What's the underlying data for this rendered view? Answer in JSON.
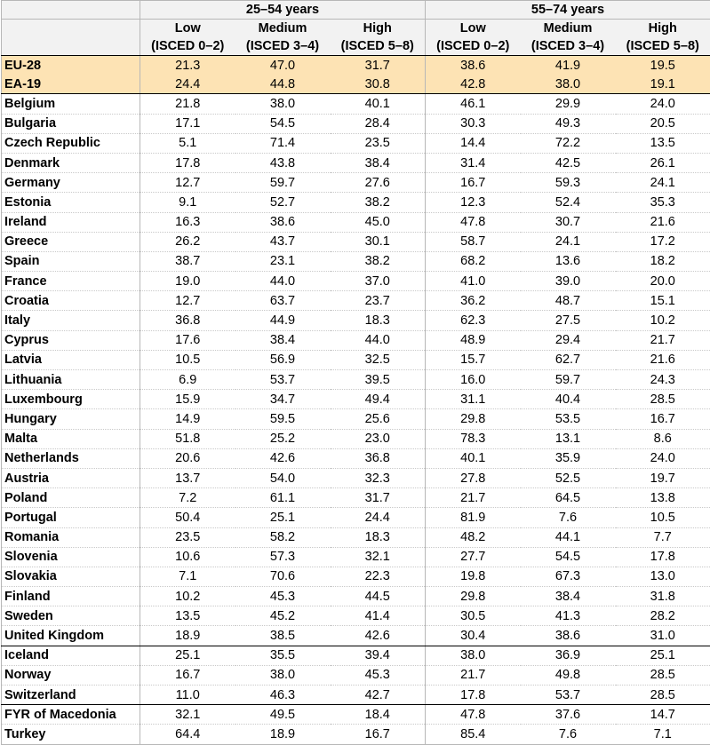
{
  "header": {
    "group_25_54": "25–54 years",
    "group_55_74": "55–74 years",
    "levels": [
      {
        "name": "Low",
        "isced": "(ISCED 0–2)"
      },
      {
        "name": "Medium",
        "isced": "(ISCED 3–4)"
      },
      {
        "name": "High",
        "isced": "(ISCED 5–8)"
      },
      {
        "name": "Low",
        "isced": "(ISCED 0–2)"
      },
      {
        "name": "Medium",
        "isced": "(ISCED 3–4)"
      },
      {
        "name": "High",
        "isced": "(ISCED 5–8)"
      }
    ]
  },
  "colors": {
    "aggregate_highlight": "#fde3b4",
    "header_bg": "#f2f2f2"
  },
  "rows": [
    {
      "country": "EU-28",
      "values": [
        "21.3",
        "47.0",
        "31.7",
        "38.6",
        "41.9",
        "19.5"
      ],
      "kind": "agg"
    },
    {
      "country": "EA-19",
      "values": [
        "24.4",
        "44.8",
        "30.8",
        "42.8",
        "38.0",
        "19.1"
      ],
      "kind": "agg-last"
    },
    {
      "country": "Belgium",
      "values": [
        "21.8",
        "38.0",
        "40.1",
        "46.1",
        "29.9",
        "24.0"
      ]
    },
    {
      "country": "Bulgaria",
      "values": [
        "17.1",
        "54.5",
        "28.4",
        "30.3",
        "49.3",
        "20.5"
      ]
    },
    {
      "country": "Czech Republic",
      "values": [
        "5.1",
        "71.4",
        "23.5",
        "14.4",
        "72.2",
        "13.5"
      ]
    },
    {
      "country": "Denmark",
      "values": [
        "17.8",
        "43.8",
        "38.4",
        "31.4",
        "42.5",
        "26.1"
      ]
    },
    {
      "country": "Germany",
      "values": [
        "12.7",
        "59.7",
        "27.6",
        "16.7",
        "59.3",
        "24.1"
      ]
    },
    {
      "country": "Estonia",
      "values": [
        "9.1",
        "52.7",
        "38.2",
        "12.3",
        "52.4",
        "35.3"
      ]
    },
    {
      "country": "Ireland",
      "values": [
        "16.3",
        "38.6",
        "45.0",
        "47.8",
        "30.7",
        "21.6"
      ]
    },
    {
      "country": "Greece",
      "values": [
        "26.2",
        "43.7",
        "30.1",
        "58.7",
        "24.1",
        "17.2"
      ]
    },
    {
      "country": "Spain",
      "values": [
        "38.7",
        "23.1",
        "38.2",
        "68.2",
        "13.6",
        "18.2"
      ]
    },
    {
      "country": "France",
      "values": [
        "19.0",
        "44.0",
        "37.0",
        "41.0",
        "39.0",
        "20.0"
      ]
    },
    {
      "country": "Croatia",
      "values": [
        "12.7",
        "63.7",
        "23.7",
        "36.2",
        "48.7",
        "15.1"
      ]
    },
    {
      "country": "Italy",
      "values": [
        "36.8",
        "44.9",
        "18.3",
        "62.3",
        "27.5",
        "10.2"
      ]
    },
    {
      "country": "Cyprus",
      "values": [
        "17.6",
        "38.4",
        "44.0",
        "48.9",
        "29.4",
        "21.7"
      ]
    },
    {
      "country": "Latvia",
      "values": [
        "10.5",
        "56.9",
        "32.5",
        "15.7",
        "62.7",
        "21.6"
      ]
    },
    {
      "country": "Lithuania",
      "values": [
        "6.9",
        "53.7",
        "39.5",
        "16.0",
        "59.7",
        "24.3"
      ]
    },
    {
      "country": "Luxembourg",
      "values": [
        "15.9",
        "34.7",
        "49.4",
        "31.1",
        "40.4",
        "28.5"
      ]
    },
    {
      "country": "Hungary",
      "values": [
        "14.9",
        "59.5",
        "25.6",
        "29.8",
        "53.5",
        "16.7"
      ]
    },
    {
      "country": "Malta",
      "values": [
        "51.8",
        "25.2",
        "23.0",
        "78.3",
        "13.1",
        "8.6"
      ]
    },
    {
      "country": "Netherlands",
      "values": [
        "20.6",
        "42.6",
        "36.8",
        "40.1",
        "35.9",
        "24.0"
      ]
    },
    {
      "country": "Austria",
      "values": [
        "13.7",
        "54.0",
        "32.3",
        "27.8",
        "52.5",
        "19.7"
      ]
    },
    {
      "country": "Poland",
      "values": [
        "7.2",
        "61.1",
        "31.7",
        "21.7",
        "64.5",
        "13.8"
      ]
    },
    {
      "country": "Portugal",
      "values": [
        "50.4",
        "25.1",
        "24.4",
        "81.9",
        "7.6",
        "10.5"
      ]
    },
    {
      "country": "Romania",
      "values": [
        "23.5",
        "58.2",
        "18.3",
        "48.2",
        "44.1",
        "7.7"
      ]
    },
    {
      "country": "Slovenia",
      "values": [
        "10.6",
        "57.3",
        "32.1",
        "27.7",
        "54.5",
        "17.8"
      ]
    },
    {
      "country": "Slovakia",
      "values": [
        "7.1",
        "70.6",
        "22.3",
        "19.8",
        "67.3",
        "13.0"
      ]
    },
    {
      "country": "Finland",
      "values": [
        "10.2",
        "45.3",
        "44.5",
        "29.8",
        "38.4",
        "31.8"
      ]
    },
    {
      "country": "Sweden",
      "values": [
        "13.5",
        "45.2",
        "41.4",
        "30.5",
        "41.3",
        "28.2"
      ]
    },
    {
      "country": "United Kingdom",
      "values": [
        "18.9",
        "38.5",
        "42.6",
        "30.4",
        "38.6",
        "31.0"
      ],
      "kind": "grpend"
    },
    {
      "country": "Iceland",
      "values": [
        "25.1",
        "35.5",
        "39.4",
        "38.0",
        "36.9",
        "25.1"
      ]
    },
    {
      "country": "Norway",
      "values": [
        "16.7",
        "38.0",
        "45.3",
        "21.7",
        "49.8",
        "28.5"
      ]
    },
    {
      "country": "Switzerland",
      "values": [
        "11.0",
        "46.3",
        "42.7",
        "17.8",
        "53.7",
        "28.5"
      ],
      "kind": "grpend"
    },
    {
      "country": "FYR of Macedonia",
      "values": [
        "32.1",
        "49.5",
        "18.4",
        "47.8",
        "37.6",
        "14.7"
      ]
    },
    {
      "country": "Turkey",
      "values": [
        "64.4",
        "18.9",
        "16.7",
        "85.4",
        "7.6",
        "7.1"
      ],
      "kind": "final"
    }
  ]
}
